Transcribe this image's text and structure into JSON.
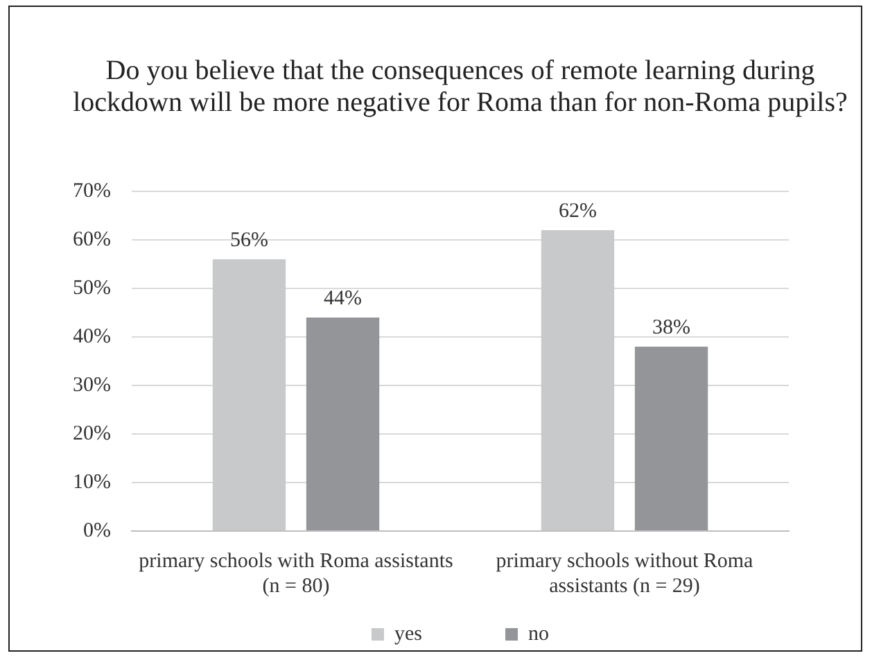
{
  "chart_data": {
    "type": "bar",
    "title": "Do you believe that the consequences of remote learning during lockdown will be more negative for Roma than for non-Roma pupils?",
    "categories": [
      "primary schools with Roma assistants (n = 80)",
      "primary schools without Roma assistants (n = 29)"
    ],
    "series": [
      {
        "name": "yes",
        "color": "#c8c9cb",
        "values": [
          56,
          62
        ],
        "value_labels": [
          "56%",
          "62%"
        ]
      },
      {
        "name": "no",
        "color": "#939598",
        "values": [
          44,
          38
        ],
        "value_labels": [
          "44%",
          "38%"
        ]
      }
    ],
    "ylim": [
      0,
      70
    ],
    "yticks": [
      {
        "value": 0,
        "label": "0%"
      },
      {
        "value": 10,
        "label": "10%"
      },
      {
        "value": 20,
        "label": "20%"
      },
      {
        "value": 30,
        "label": "30%"
      },
      {
        "value": 40,
        "label": "40%"
      },
      {
        "value": 50,
        "label": "50%"
      },
      {
        "value": 60,
        "label": "60%"
      },
      {
        "value": 70,
        "label": "70%"
      }
    ],
    "grid": "y",
    "legend": "bottom"
  }
}
